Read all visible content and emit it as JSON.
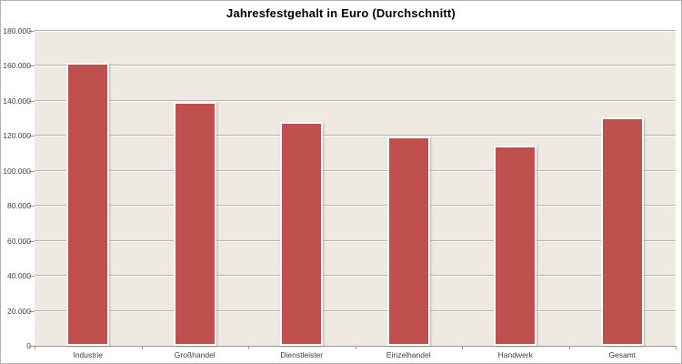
{
  "chart_data": {
    "type": "bar",
    "title": "Jahresfestgehalt in Euro (Durchschnitt)",
    "xlabel": "",
    "ylabel": "",
    "categories": [
      "Industrie",
      "Großhandel",
      "Dienstleister",
      "Einzelhandel",
      "Handwerk",
      "Gesamt"
    ],
    "values": [
      162000,
      139500,
      128000,
      119500,
      114500,
      130500
    ],
    "ylim": [
      0,
      180000
    ],
    "y_tick_step": 20000,
    "y_tick_labels": [
      "0",
      "20.000",
      "40.000",
      "60.000",
      "80.000",
      "100.000",
      "120.000",
      "140.000",
      "160.000",
      "180.000"
    ],
    "grid": true,
    "legend_position": "none",
    "colors": {
      "bar_fill": "#c0504d",
      "bar_border": "#ffffff",
      "plot_background": "#eeeae1",
      "gridline": "#b9b4aa",
      "gridline_highlight": "#fcfbf7",
      "axis_line": "#9c988f",
      "axis_text": "#3f3f3f",
      "title_text": "#000000",
      "chart_background": "#ffffff",
      "chart_border": "#b3b3b3"
    }
  }
}
